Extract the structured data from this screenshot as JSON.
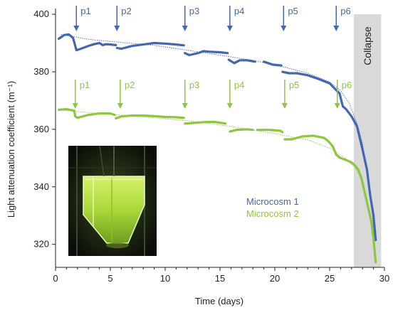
{
  "chart_data": {
    "type": "line",
    "title": "",
    "xlabel": "Time (days)",
    "ylabel": "Light attenuation coefficient (m⁻¹)",
    "xlim": [
      0,
      30
    ],
    "ylim": [
      312,
      402
    ],
    "x_ticks": [
      0,
      5,
      10,
      15,
      20,
      25,
      30
    ],
    "y_ticks": [
      320,
      340,
      360,
      380,
      400
    ],
    "grid": false,
    "legend_position": "center-right",
    "shaded_region": {
      "x": [
        27.2,
        29.7
      ],
      "label": "Collapse",
      "color": "#d9d9d9"
    },
    "series": [
      {
        "name": "Microcosm 1",
        "color": "#4466b0",
        "segments": [
          [
            [
              0.3,
              391.5
            ],
            [
              0.8,
              392.8
            ],
            [
              1.2,
              393
            ],
            [
              1.6,
              391.8
            ],
            [
              1.8,
              389
            ],
            [
              1.9,
              387.5
            ],
            [
              2.3,
              388
            ],
            [
              3,
              389
            ],
            [
              3.5,
              389.6
            ],
            [
              4,
              390
            ],
            [
              4.3,
              389.3
            ],
            [
              4.6,
              389.6
            ],
            [
              5,
              389.5
            ],
            [
              5.5,
              389.3
            ]
          ],
          [
            [
              5.6,
              388.3
            ],
            [
              6,
              388
            ],
            [
              7,
              389
            ],
            [
              8,
              389.5
            ],
            [
              9,
              390
            ],
            [
              10,
              389.8
            ],
            [
              11,
              389.5
            ],
            [
              11.7,
              389.2
            ]
          ],
          [
            [
              11.8,
              386.5
            ],
            [
              12.2,
              385.8
            ],
            [
              13,
              386.5
            ],
            [
              13.5,
              387.2
            ],
            [
              14,
              387
            ],
            [
              15,
              386.8
            ],
            [
              15.7,
              386.5
            ]
          ],
          [
            [
              15.8,
              384.2
            ],
            [
              16.3,
              383
            ],
            [
              16.8,
              384
            ],
            [
              17.5,
              384
            ],
            [
              18.2,
              383.5
            ]
          ],
          [
            [
              19,
              383.5
            ],
            [
              19.8,
              382.5
            ],
            [
              20.6,
              382.2
            ]
          ],
          [
            [
              20.7,
              380
            ],
            [
              21.3,
              379.5
            ],
            [
              22,
              379.5
            ],
            [
              23,
              378.8
            ],
            [
              24,
              377.5
            ],
            [
              25,
              376
            ],
            [
              25.5,
              374
            ],
            [
              25.9,
              372.5
            ],
            [
              26.2,
              368
            ],
            [
              26.5,
              367
            ],
            [
              27,
              364.5
            ],
            [
              27.5,
              361
            ],
            [
              28,
              353
            ],
            [
              28.4,
              346
            ],
            [
              28.7,
              337
            ],
            [
              29,
              330
            ],
            [
              29.2,
              321.5
            ]
          ]
        ],
        "fit": [
          [
            0.5,
            393
          ],
          [
            3,
            391.3
          ],
          [
            6,
            390.2
          ],
          [
            9,
            389.2
          ],
          [
            12,
            387.5
          ],
          [
            15,
            385.8
          ],
          [
            18,
            384
          ],
          [
            21,
            381.5
          ],
          [
            23,
            379.5
          ],
          [
            25,
            376.5
          ],
          [
            26,
            373.5
          ],
          [
            26.8,
            369
          ],
          [
            27.5,
            362
          ],
          [
            28,
            355
          ],
          [
            28.5,
            343
          ],
          [
            28.9,
            330
          ],
          [
            29.1,
            321
          ]
        ],
        "perturbations": [
          {
            "label": "p1",
            "x": 1.9
          },
          {
            "label": "p2",
            "x": 5.6
          },
          {
            "label": "p3",
            "x": 11.8
          },
          {
            "label": "p4",
            "x": 15.9
          },
          {
            "label": "p5",
            "x": 20.8
          },
          {
            "label": "p6",
            "x": 25.6
          }
        ]
      },
      {
        "name": "Microcosm 2",
        "color": "#8dc63f",
        "segments": [
          [
            [
              0.3,
              366.8
            ],
            [
              1,
              367
            ],
            [
              1.7,
              366.5
            ],
            [
              1.8,
              364.5
            ],
            [
              2,
              364
            ],
            [
              3,
              365
            ],
            [
              4,
              365.5
            ],
            [
              5,
              365.5
            ],
            [
              5.4,
              365
            ]
          ],
          [
            [
              5.5,
              363.8
            ],
            [
              6,
              364.5
            ],
            [
              7,
              364.8
            ],
            [
              8,
              364.8
            ],
            [
              9,
              364.6
            ],
            [
              10,
              364.3
            ],
            [
              11,
              364.2
            ],
            [
              11.7,
              364
            ]
          ],
          [
            [
              11.8,
              362
            ],
            [
              12.5,
              362.2
            ],
            [
              13.5,
              362.5
            ],
            [
              14.5,
              362.6
            ],
            [
              15.5,
              362
            ]
          ],
          [
            [
              15.9,
              359.2
            ],
            [
              16.5,
              359.8
            ],
            [
              17.5,
              360
            ],
            [
              18,
              359.8
            ]
          ],
          [
            [
              18.4,
              359.8
            ],
            [
              19.5,
              359.8
            ],
            [
              20.5,
              359.5
            ],
            [
              20.7,
              359
            ]
          ],
          [
            [
              20.9,
              356.5
            ],
            [
              21.5,
              356.5
            ],
            [
              22.5,
              357.5
            ],
            [
              23.5,
              357.8
            ],
            [
              24.5,
              357
            ],
            [
              24.9,
              355.8
            ],
            [
              25.3,
              354
            ],
            [
              25.6,
              351.2
            ],
            [
              26,
              350
            ],
            [
              26.5,
              349.3
            ],
            [
              27,
              348.5
            ],
            [
              27.3,
              347.5
            ],
            [
              27.6,
              346
            ],
            [
              27.9,
              343
            ],
            [
              28.2,
              338
            ],
            [
              28.5,
              333
            ],
            [
              28.8,
              328
            ],
            [
              29,
              322
            ],
            [
              29.2,
              313.8
            ]
          ]
        ],
        "fit": [
          [
            0.5,
            366.7
          ],
          [
            4,
            365.5
          ],
          [
            8,
            364.3
          ],
          [
            12,
            363
          ],
          [
            16,
            361
          ],
          [
            20,
            358.5
          ],
          [
            23,
            356.3
          ],
          [
            25,
            353.5
          ],
          [
            26.5,
            349.8
          ],
          [
            27.5,
            345.8
          ],
          [
            28.2,
            339
          ],
          [
            28.7,
            330
          ],
          [
            29.1,
            318
          ]
        ],
        "perturbations": [
          {
            "label": "p1",
            "x": 1.8
          },
          {
            "label": "p2",
            "x": 5.9
          },
          {
            "label": "p3",
            "x": 11.8
          },
          {
            "label": "p4",
            "x": 15.9
          },
          {
            "label": "p5",
            "x": 20.9
          },
          {
            "label": "p6",
            "x": 25.7
          }
        ]
      }
    ]
  },
  "colors": {
    "microcosm1": "#4466b0",
    "microcosm2": "#8dc63f",
    "collapse_band": "#d9d9d9",
    "axis": "#222222",
    "photo_background": "#0b0f08",
    "photo_liquid": "#b7e23a"
  },
  "inset_photo": {
    "description_icon": "microcosm-photo"
  }
}
